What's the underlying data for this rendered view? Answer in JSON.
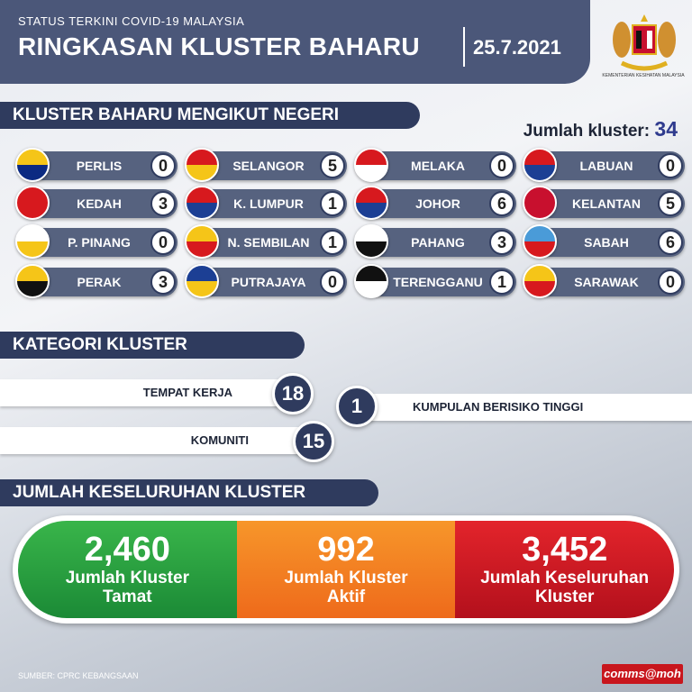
{
  "header": {
    "subtitle": "STATUS TERKINI COVID-19 MALAYSIA",
    "title": "RINGKASAN KLUSTER BAHARU",
    "date": "25.7.2021",
    "logo_caption": "KEMENTERIAN KESIHATAN MALAYSIA"
  },
  "states_section": {
    "title": "KLUSTER BAHARU MENGIKUT NEGERI",
    "total_label": "Jumlah kluster:",
    "total_value": "34",
    "states": [
      {
        "name": "PERLIS",
        "count": "0",
        "flag": [
          "#f5c518",
          "#0b2a82"
        ]
      },
      {
        "name": "SELANGOR",
        "count": "5",
        "flag": [
          "#d7191e",
          "#f5c518"
        ]
      },
      {
        "name": "MELAKA",
        "count": "0",
        "flag": [
          "#d7191e",
          "#ffffff"
        ]
      },
      {
        "name": "LABUAN",
        "count": "0",
        "flag": [
          "#d7191e",
          "#1c3f94"
        ]
      },
      {
        "name": "KEDAH",
        "count": "3",
        "flag": [
          "#d7191e",
          "#d7191e"
        ]
      },
      {
        "name": "K. LUMPUR",
        "count": "1",
        "flag": [
          "#d7191e",
          "#1c3f94"
        ]
      },
      {
        "name": "JOHOR",
        "count": "6",
        "flag": [
          "#d7191e",
          "#1c3f94"
        ]
      },
      {
        "name": "KELANTAN",
        "count": "5",
        "flag": [
          "#c8102e",
          "#c8102e"
        ]
      },
      {
        "name": "P. PINANG",
        "count": "0",
        "flag": [
          "#ffffff",
          "#f5c518"
        ]
      },
      {
        "name": "N. SEMBILAN",
        "count": "1",
        "flag": [
          "#f5c518",
          "#d7191e"
        ]
      },
      {
        "name": "PAHANG",
        "count": "3",
        "flag": [
          "#ffffff",
          "#111111"
        ]
      },
      {
        "name": "SABAH",
        "count": "6",
        "flag": [
          "#4a9bd8",
          "#d7191e"
        ]
      },
      {
        "name": "PERAK",
        "count": "3",
        "flag": [
          "#f5c518",
          "#111111"
        ]
      },
      {
        "name": "PUTRAJAYA",
        "count": "0",
        "flag": [
          "#1c3f94",
          "#f5c518"
        ]
      },
      {
        "name": "TERENGGANU",
        "count": "1",
        "flag": [
          "#111111",
          "#ffffff"
        ]
      },
      {
        "name": "SARAWAK",
        "count": "0",
        "flag": [
          "#f5c518",
          "#d7191e"
        ]
      }
    ]
  },
  "category_section": {
    "title": "KATEGORI KLUSTER",
    "items": [
      {
        "label": "TEMPAT KERJA",
        "value": "18"
      },
      {
        "label": "KUMPULAN BERISIKO TINGGI",
        "value": "1"
      },
      {
        "label": "KOMUNITI",
        "value": "15"
      }
    ]
  },
  "totals_section": {
    "title": "JUMLAH KESELURUHAN KLUSTER",
    "items": [
      {
        "value": "2,460",
        "label1": "Jumlah Kluster",
        "label2": "Tamat",
        "color": "#2aa043"
      },
      {
        "value": "992",
        "label1": "Jumlah Kluster",
        "label2": "Aktif",
        "color": "#f27f22"
      },
      {
        "value": "3,452",
        "label1": "Jumlah Keseluruhan",
        "label2": "Kluster",
        "color": "#cc1a24"
      }
    ]
  },
  "footer": {
    "source": "SUMBER: CPRC KEBANGSAAN",
    "brand": "comms@moh"
  }
}
